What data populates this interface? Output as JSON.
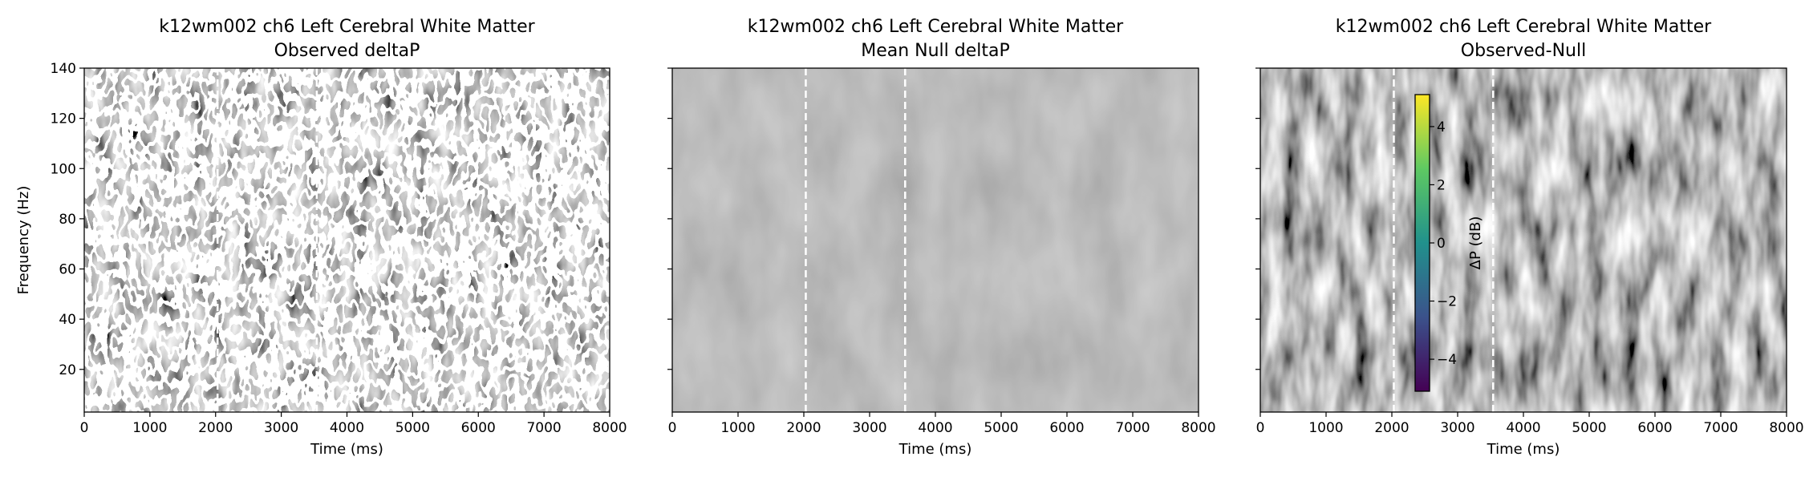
{
  "chart_data": [
    {
      "type": "heatmap",
      "title": "k12wm002 ch6 Left Cerebral White Matter",
      "subtitle": "Observed deltaP",
      "xlabel": "Time (ms)",
      "ylabel": "Frequency (Hz)",
      "xlim": [
        0,
        8000
      ],
      "xticks": [
        0,
        1000,
        2000,
        3000,
        4000,
        5000,
        6000,
        7000,
        8000
      ],
      "ylim": [
        3,
        140
      ],
      "yticks": [
        20,
        40,
        60,
        80,
        100,
        120,
        140
      ],
      "vlines": [
        2030,
        3540
      ],
      "colormap": "viridis"
    },
    {
      "type": "heatmap",
      "title": "k12wm002 ch6 Left Cerebral White Matter",
      "subtitle": "Mean Null deltaP",
      "xlabel": "Time (ms)",
      "xlim": [
        0,
        8000
      ],
      "xticks": [
        0,
        1000,
        2000,
        3000,
        4000,
        5000,
        6000,
        7000,
        8000
      ],
      "ylim": [
        3,
        140
      ],
      "vlines": [
        2030,
        3540
      ],
      "colormap": "viridis"
    },
    {
      "type": "heatmap",
      "title": "k12wm002 ch6 Left Cerebral White Matter",
      "subtitle": "Observed-Null",
      "xlabel": "Time (ms)",
      "xlim": [
        0,
        8000
      ],
      "xticks": [
        0,
        1000,
        2000,
        3000,
        4000,
        5000,
        6000,
        7000,
        8000
      ],
      "ylim": [
        3,
        140
      ],
      "vlines": [
        2030,
        3540
      ],
      "colormap": "viridis",
      "colorbar": {
        "label": "ΔP (dB)",
        "lim": [
          -5.1,
          5.1
        ],
        "ticks": [
          {
            "value": -4,
            "label": "−4"
          },
          {
            "value": -2,
            "label": "−2"
          },
          0,
          2,
          4
        ]
      }
    }
  ]
}
